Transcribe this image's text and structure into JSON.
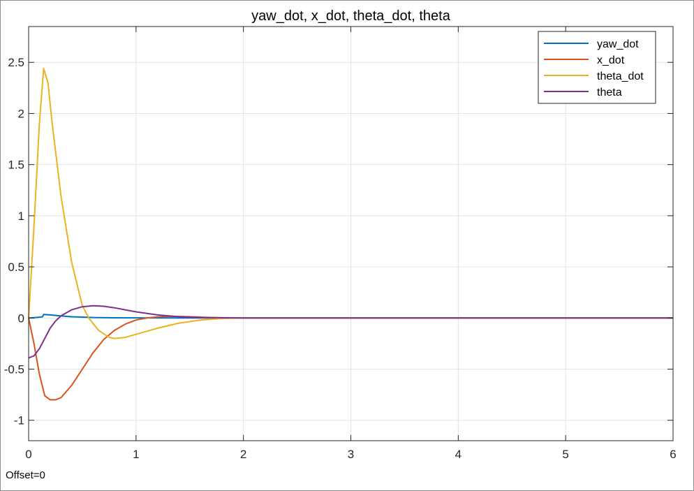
{
  "chart_data": {
    "type": "line",
    "title": "yaw_dot, x_dot, theta_dot, theta",
    "xlabel": "",
    "ylabel": "",
    "xlim": [
      0,
      6
    ],
    "ylim": [
      -1.2,
      2.85
    ],
    "xticks": [
      0,
      1,
      2,
      3,
      4,
      5,
      6
    ],
    "xtick_labels": [
      "0",
      "1",
      "2",
      "3",
      "4",
      "5",
      "6"
    ],
    "yticks": [
      -1,
      -0.5,
      0,
      0.5,
      1,
      1.5,
      2,
      2.5
    ],
    "ytick_labels": [
      "-1",
      "-0.5",
      "0",
      "0.5",
      "1",
      "1.5",
      "2",
      "2.5"
    ],
    "grid": true,
    "legend_position": "top-right",
    "series": [
      {
        "name": "yaw_dot",
        "color": "#0072BD",
        "x": [
          0,
          0.05,
          0.1,
          0.13,
          0.14,
          0.2,
          0.3,
          0.4,
          0.6,
          0.8,
          1.0,
          1.5,
          2.0,
          3.0,
          4.0,
          5.0,
          6.0
        ],
        "y": [
          0,
          0.003,
          0.008,
          0.012,
          0.035,
          0.03,
          0.02,
          0.012,
          0.005,
          0.002,
          0.001,
          0,
          0,
          0,
          0,
          0,
          0
        ]
      },
      {
        "name": "x_dot",
        "color": "#D95319",
        "x": [
          0,
          0.05,
          0.1,
          0.15,
          0.2,
          0.25,
          0.3,
          0.4,
          0.5,
          0.6,
          0.7,
          0.8,
          0.9,
          1.0,
          1.1,
          1.2,
          1.3,
          1.4,
          1.5,
          1.7,
          2.0,
          3.0,
          4.0,
          5.0,
          6.0
        ],
        "y": [
          0,
          -0.25,
          -0.55,
          -0.76,
          -0.8,
          -0.8,
          -0.78,
          -0.66,
          -0.5,
          -0.34,
          -0.21,
          -0.12,
          -0.06,
          -0.02,
          0.0,
          0.01,
          0.015,
          0.015,
          0.012,
          0.005,
          0,
          0,
          0,
          0,
          0
        ]
      },
      {
        "name": "theta_dot",
        "color": "#EDB120",
        "x": [
          0,
          0.05,
          0.1,
          0.14,
          0.18,
          0.22,
          0.3,
          0.4,
          0.5,
          0.56,
          0.65,
          0.75,
          0.8,
          0.9,
          1.0,
          1.2,
          1.4,
          1.6,
          1.8,
          2.0,
          3.0,
          4.0,
          5.0,
          6.0
        ],
        "y": [
          0,
          0.9,
          1.9,
          2.44,
          2.3,
          1.9,
          1.2,
          0.55,
          0.12,
          0.0,
          -0.12,
          -0.19,
          -0.2,
          -0.19,
          -0.16,
          -0.1,
          -0.05,
          -0.02,
          -0.005,
          0,
          0,
          0,
          0,
          0
        ]
      },
      {
        "name": "theta",
        "color": "#7E2F8E",
        "x": [
          0,
          0.05,
          0.1,
          0.15,
          0.2,
          0.25,
          0.3,
          0.35,
          0.4,
          0.5,
          0.6,
          0.7,
          0.8,
          0.9,
          1.0,
          1.2,
          1.4,
          1.6,
          1.8,
          2.0,
          3.0,
          4.0,
          5.0,
          6.0
        ],
        "y": [
          -0.39,
          -0.37,
          -0.3,
          -0.2,
          -0.1,
          -0.03,
          0.02,
          0.05,
          0.08,
          0.11,
          0.12,
          0.115,
          0.1,
          0.08,
          0.06,
          0.03,
          0.012,
          0.005,
          0.002,
          0,
          0,
          0,
          0,
          0
        ]
      }
    ]
  },
  "footer": {
    "offset_text": "Offset=0"
  }
}
